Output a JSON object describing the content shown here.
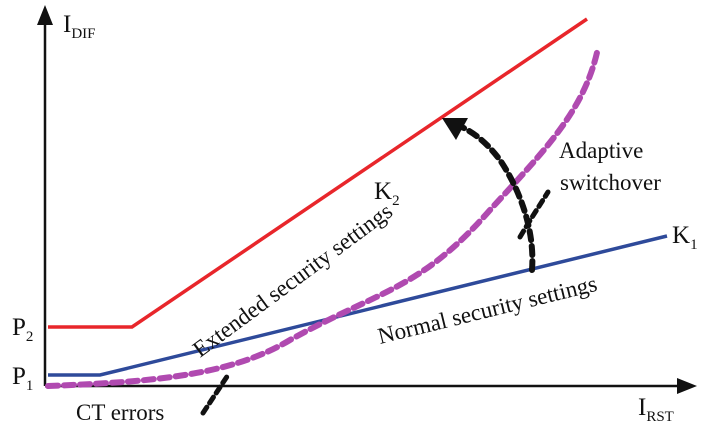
{
  "axes": {
    "y_label": {
      "main": "I",
      "sub": "DIF"
    },
    "x_label": {
      "main": "I",
      "sub": "RST"
    }
  },
  "points": {
    "p1": {
      "main": "P",
      "sub": "1"
    },
    "p2": {
      "main": "P",
      "sub": "2"
    }
  },
  "slopes": {
    "k1": {
      "main": "K",
      "sub": "1"
    },
    "k2": {
      "main": "K",
      "sub": "2"
    }
  },
  "curves": {
    "extended": {
      "label": "Extended security settings",
      "color": "#e8262b"
    },
    "normal": {
      "label": "Normal security settings",
      "color": "#2e4a9a"
    },
    "ct_error": {
      "label": "CT errors",
      "color": "#b04ab0"
    }
  },
  "annotations": {
    "adaptive_line1": "Adaptive",
    "adaptive_line2": "switchover",
    "arrow_color": "#111111"
  }
}
